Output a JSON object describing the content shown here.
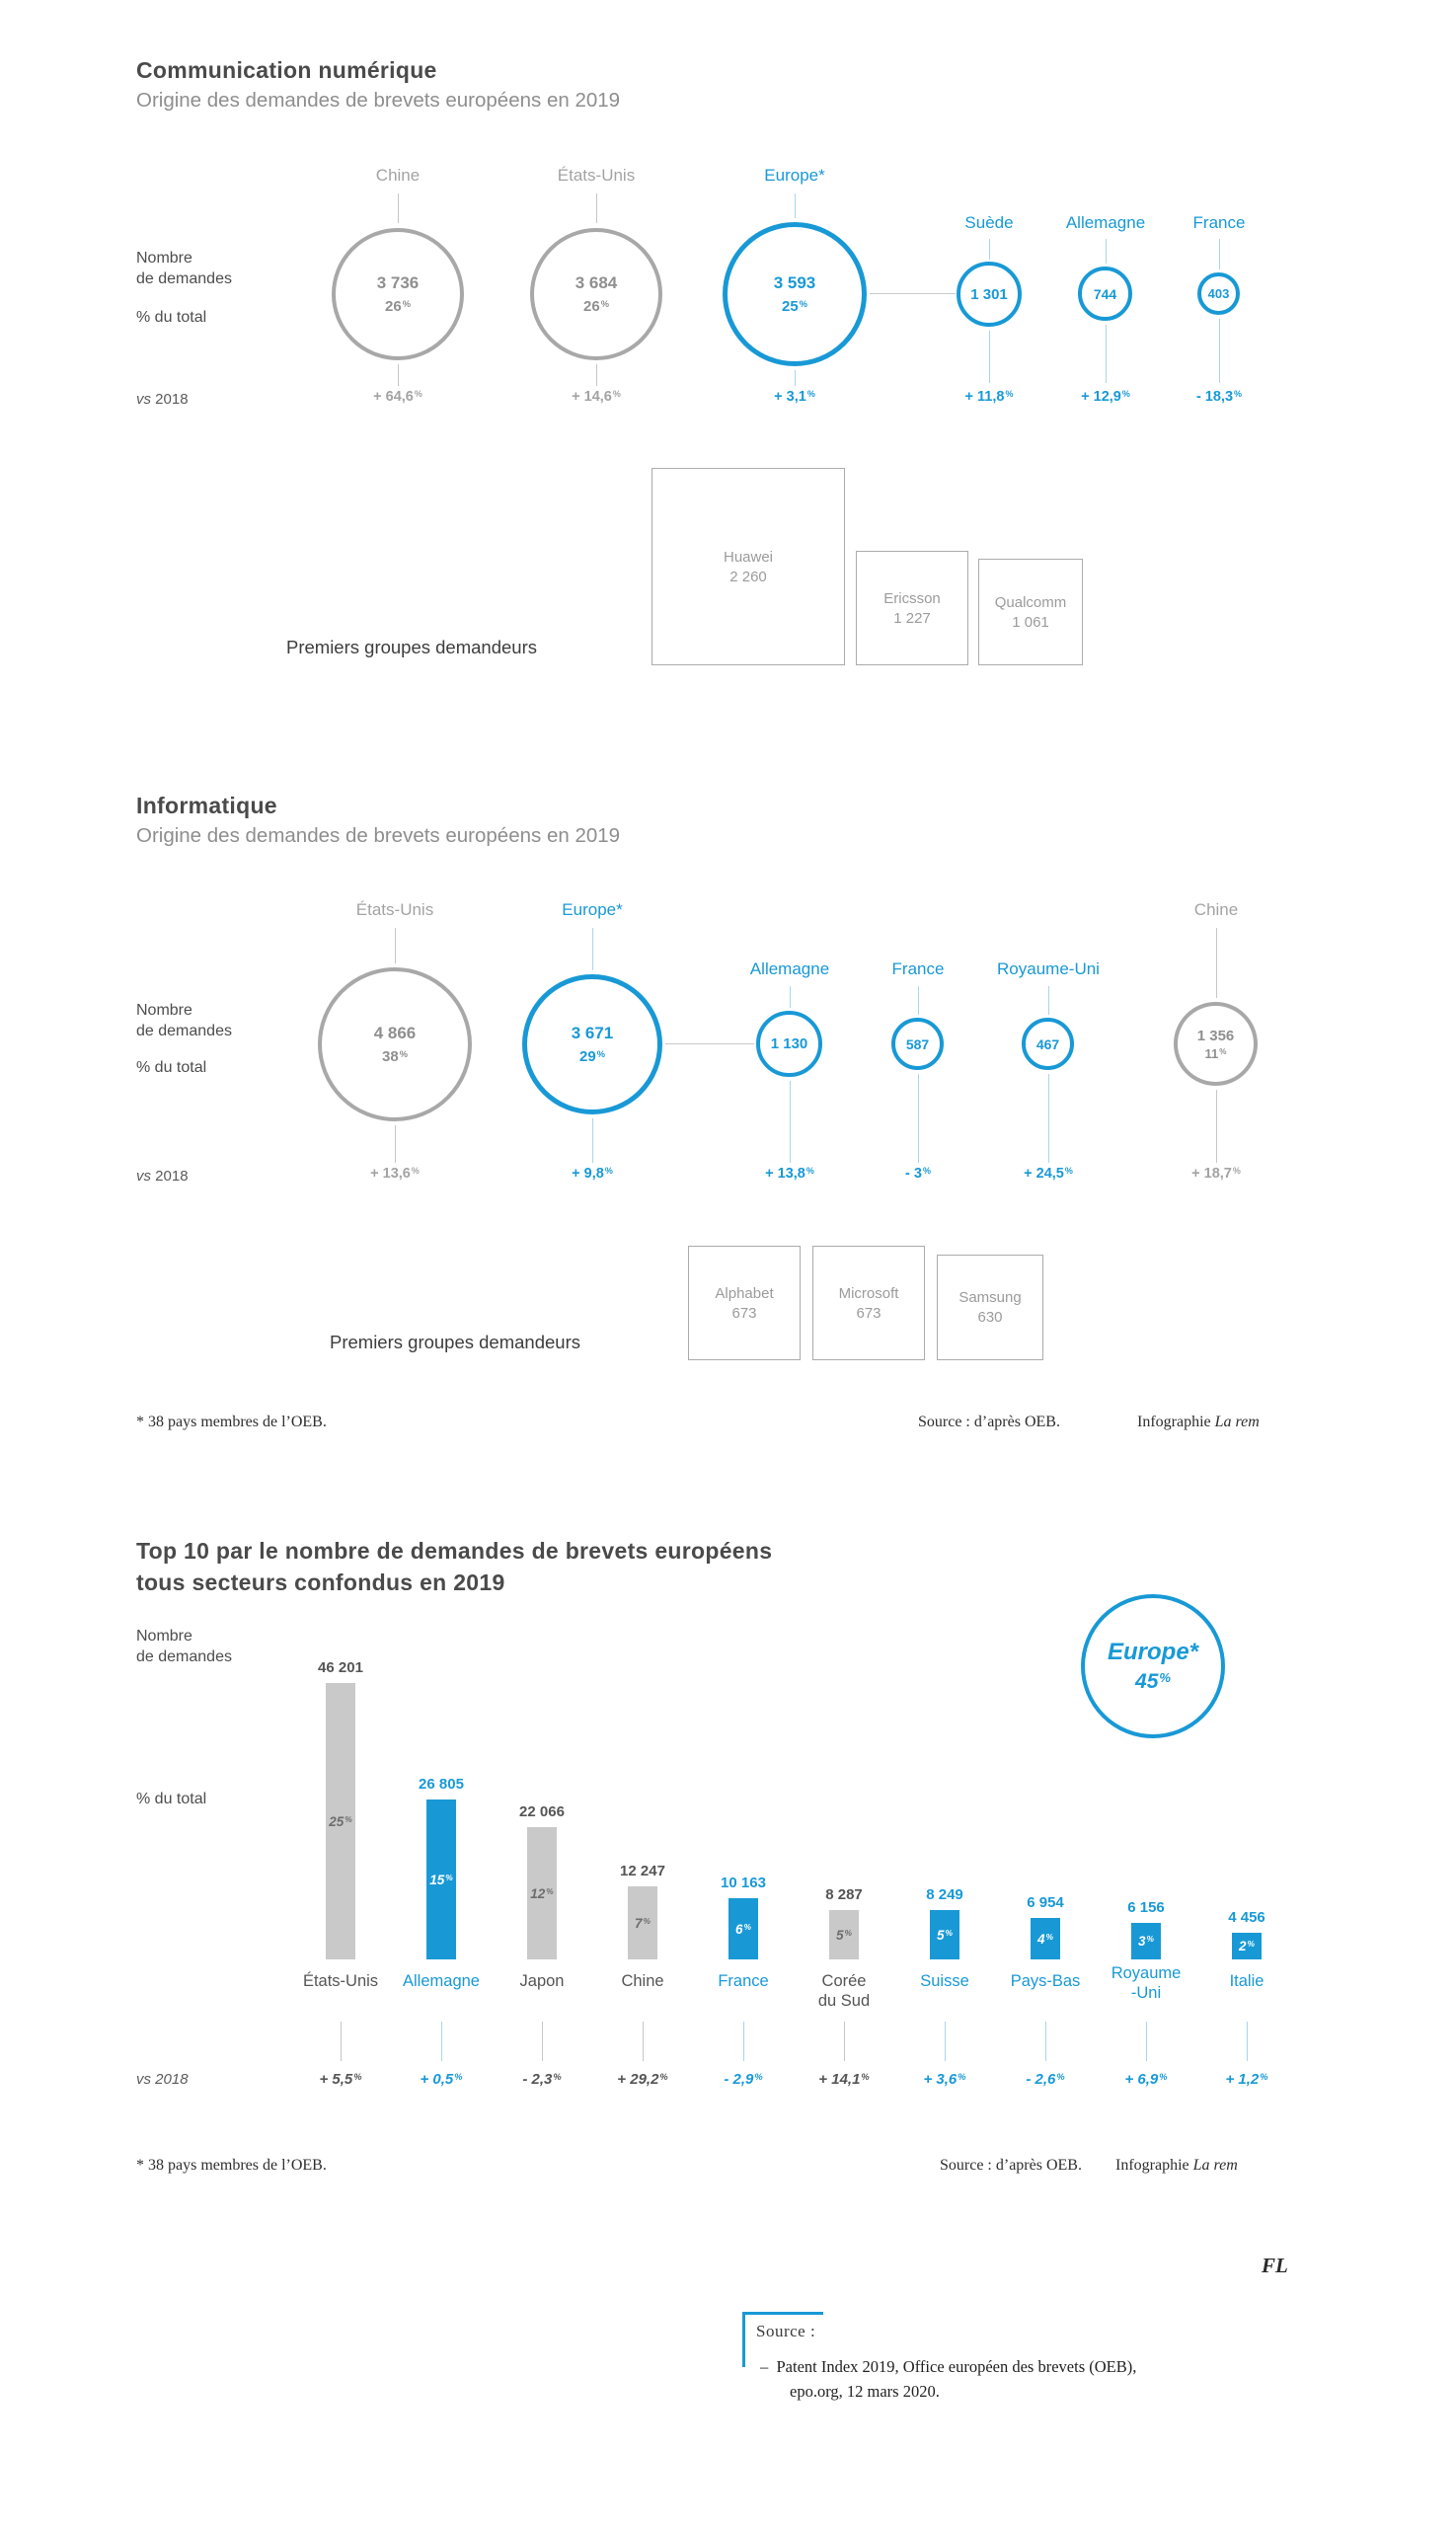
{
  "colors": {
    "blue": "#1899d6",
    "bar_gray": "#c9c9c9",
    "gray_border": "#a8a8a8",
    "text_gray": "#8f8f8f",
    "text_dark": "#4d4d4d"
  },
  "common": {
    "pct_sign": "%",
    "nombre1": "Nombre",
    "nombre2": "de demandes",
    "pct_total": "% du total",
    "vs": "vs",
    "year": "2018",
    "groups_label": "Premiers groupes demandeurs",
    "footnote": "* 38 pays membres de l’OEB.",
    "source": "Source : d’après OEB.",
    "infographie": "Infographie",
    "brand": "La rem"
  },
  "s1": {
    "title": "Communication numérique",
    "subtitle": "Origine des demandes de brevets européens en 2019",
    "bubbles": [
      {
        "label": "Chine",
        "value": "3 736",
        "pct": "26",
        "vs": "+ 64,6"
      },
      {
        "label": "États-Unis",
        "value": "3 684",
        "pct": "26",
        "vs": "+ 14,6"
      },
      {
        "label": "Europe*",
        "value": "3 593",
        "pct": "25",
        "vs": "+ 3,1"
      },
      {
        "label": "Suède",
        "value": "1 301",
        "vs": "+ 11,8"
      },
      {
        "label": "Allemagne",
        "value": "744",
        "vs": "+ 12,9"
      },
      {
        "label": "France",
        "value": "403",
        "vs": "- 18,3"
      }
    ],
    "groups": [
      {
        "name": "Huawei",
        "value": "2 260"
      },
      {
        "name": "Ericsson",
        "value": "1 227"
      },
      {
        "name": "Qualcomm",
        "value": "1 061"
      }
    ]
  },
  "s2": {
    "title": "Informatique",
    "subtitle": "Origine des demandes de brevets européens en 2019",
    "bubbles": [
      {
        "label": "États-Unis",
        "value": "4 866",
        "pct": "38",
        "vs": "+ 13,6"
      },
      {
        "label": "Europe*",
        "value": "3 671",
        "pct": "29",
        "vs": "+ 9,8"
      },
      {
        "label": "Allemagne",
        "value": "1 130",
        "vs": "+ 13,8"
      },
      {
        "label": "France",
        "value": "587",
        "vs": "- 3"
      },
      {
        "label": "Royaume-Uni",
        "value": "467",
        "vs": "+ 24,5"
      },
      {
        "label": "Chine",
        "value": "1 356",
        "pct": "11",
        "vs": "+ 18,7"
      }
    ],
    "groups": [
      {
        "name": "Alphabet",
        "value": "673"
      },
      {
        "name": "Microsoft",
        "value": "673"
      },
      {
        "name": "Samsung",
        "value": "630"
      }
    ]
  },
  "s3": {
    "title1": "Top 10 par le nombre de demandes de brevets européens",
    "title2": "tous secteurs confondus en 2019",
    "europe": {
      "label": "Europe*",
      "pct": "45"
    },
    "bars": [
      {
        "label1": "États-Unis",
        "value_display": "46 201",
        "pct": "25",
        "vs": "+ 5,5"
      },
      {
        "label1": "Allemagne",
        "value_display": "26 805",
        "pct": "15",
        "vs": "+ 0,5"
      },
      {
        "label1": "Japon",
        "value_display": "22 066",
        "pct": "12",
        "vs": "- 2,3"
      },
      {
        "label1": "Chine",
        "value_display": "12 247",
        "pct": "7",
        "vs": "+ 29,2"
      },
      {
        "label1": "France",
        "value_display": "10 163",
        "pct": "6",
        "vs": "- 2,9"
      },
      {
        "label1": "Corée",
        "label2": "du Sud",
        "value_display": "8 287",
        "pct": "5",
        "vs": "+ 14,1"
      },
      {
        "label1": "Suisse",
        "value_display": "8 249",
        "pct": "5",
        "vs": "+ 3,6"
      },
      {
        "label1": "Pays-Bas",
        "value_display": "6 954",
        "pct": "4",
        "vs": "- 2,6"
      },
      {
        "label1": "Royaume",
        "label2": "-Uni",
        "value_display": "6 156",
        "pct": "3",
        "vs": "+ 6,9"
      },
      {
        "label1": "Italie",
        "value_display": "4 456",
        "pct": "2",
        "vs": "+ 1,2"
      }
    ],
    "initials": "FL",
    "source_block": {
      "label": "Source :",
      "dash": "–",
      "line1": "Patent Index 2019, Office européen des brevets (OEB),",
      "line2": "epo.org, 12 mars 2020."
    }
  },
  "chart_data": [
    {
      "type": "bubble",
      "title": "Communication numérique — Origine des demandes de brevets européens en 2019",
      "categories": [
        "Chine",
        "États-Unis",
        "Europe*",
        "Suède",
        "Allemagne",
        "France"
      ],
      "values": [
        3736,
        3684,
        3593,
        1301,
        744,
        403
      ],
      "pct_of_total": [
        26,
        26,
        25,
        null,
        null,
        null
      ],
      "vs_2018_pct": [
        64.6,
        14.6,
        3.1,
        11.8,
        12.9,
        -18.3
      ],
      "top_applicants": [
        {
          "name": "Huawei",
          "value": 2260
        },
        {
          "name": "Ericsson",
          "value": 1227
        },
        {
          "name": "Qualcomm",
          "value": 1061
        }
      ]
    },
    {
      "type": "bubble",
      "title": "Informatique — Origine des demandes de brevets européens en 2019",
      "categories": [
        "États-Unis",
        "Europe*",
        "Allemagne",
        "France",
        "Royaume-Uni",
        "Chine"
      ],
      "values": [
        4866,
        3671,
        1130,
        587,
        467,
        1356
      ],
      "pct_of_total": [
        38,
        29,
        null,
        null,
        null,
        11
      ],
      "vs_2018_pct": [
        13.6,
        9.8,
        13.8,
        -3,
        24.5,
        18.7
      ],
      "top_applicants": [
        {
          "name": "Alphabet",
          "value": 673
        },
        {
          "name": "Microsoft",
          "value": 673
        },
        {
          "name": "Samsung",
          "value": 630
        }
      ]
    },
    {
      "type": "bar",
      "title": "Top 10 par le nombre de demandes de brevets européens tous secteurs confondus en 2019",
      "categories": [
        "États-Unis",
        "Allemagne",
        "Japon",
        "Chine",
        "France",
        "Corée du Sud",
        "Suisse",
        "Pays-Bas",
        "Royaume-Uni",
        "Italie"
      ],
      "values": [
        46201,
        26805,
        22066,
        12247,
        10163,
        8287,
        8249,
        6954,
        6156,
        4456
      ],
      "pct_of_total": [
        25,
        15,
        12,
        7,
        6,
        5,
        5,
        4,
        3,
        2
      ],
      "vs_2018_pct": [
        5.5,
        0.5,
        -2.3,
        29.2,
        -2.9,
        14.1,
        3.6,
        -2.6,
        6.9,
        1.2
      ],
      "europe_share_pct": 45,
      "ylabel": "Nombre de demandes",
      "legend_position": "none",
      "grid": false
    }
  ]
}
